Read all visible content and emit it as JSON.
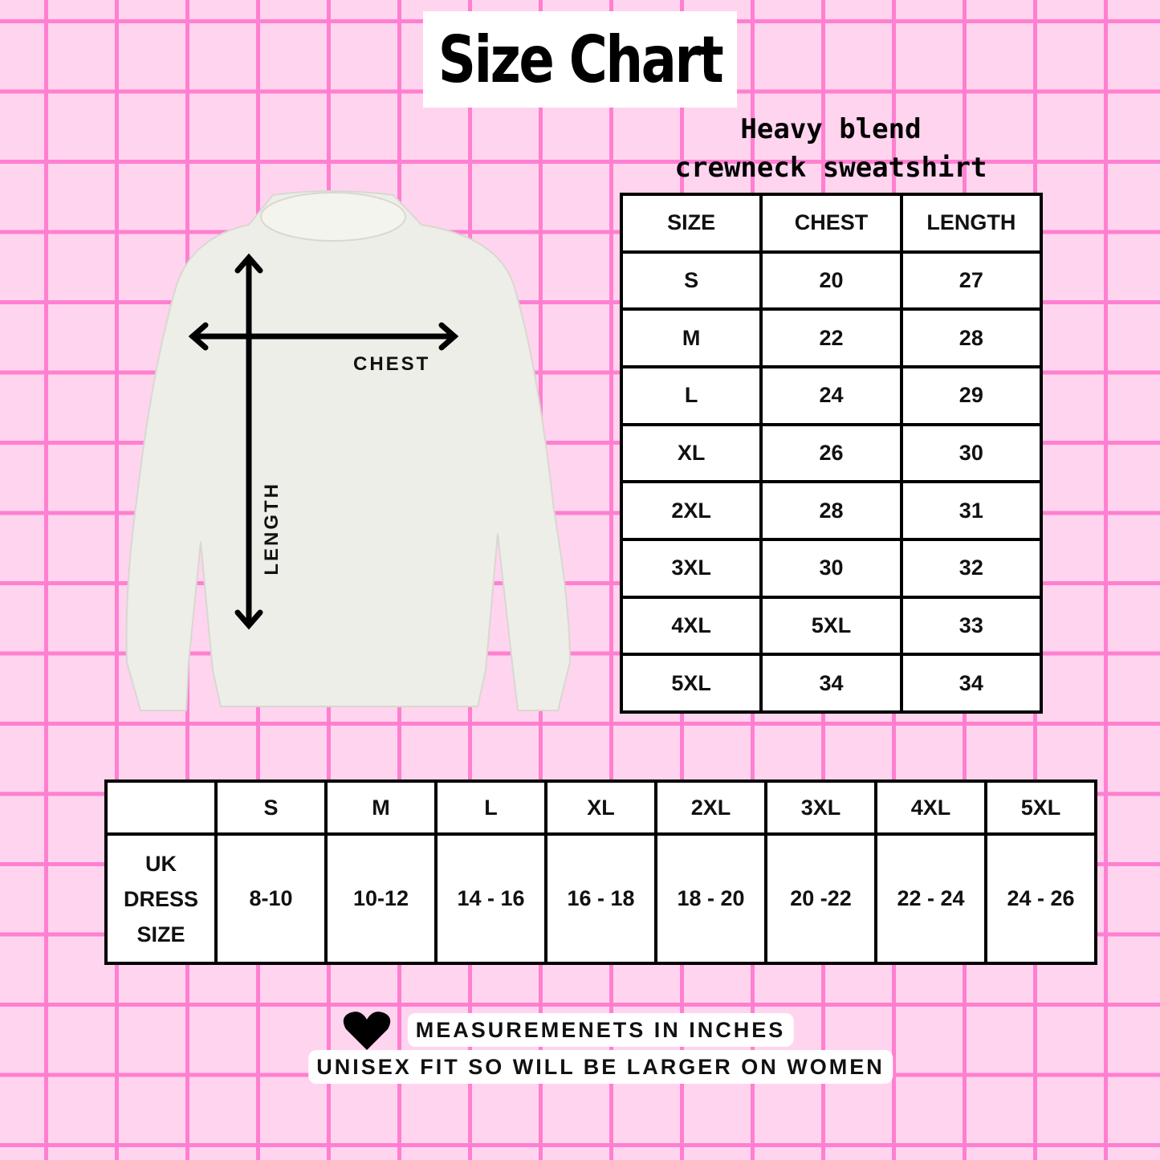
{
  "title": "Size Chart",
  "subtitle": [
    "Heavy blend",
    "crewneck sweatshirt"
  ],
  "garment_labels": {
    "chest": "CHEST",
    "length": "LENGTH"
  },
  "measurements_table": {
    "headers": [
      "SIZE",
      "CHEST",
      "LENGTH"
    ],
    "rows": [
      [
        "S",
        "20",
        "27"
      ],
      [
        "M",
        "22",
        "28"
      ],
      [
        "L",
        "24",
        "29"
      ],
      [
        "XL",
        "26",
        "30"
      ],
      [
        "2XL",
        "28",
        "31"
      ],
      [
        "3XL",
        "30",
        "32"
      ],
      [
        "4XL",
        "5XL",
        "33"
      ],
      [
        "5XL",
        "34",
        "34"
      ]
    ]
  },
  "uk_table": {
    "headers": [
      "",
      "S",
      "M",
      "L",
      "XL",
      "2XL",
      "3XL",
      "4XL",
      "5XL"
    ],
    "row_label": [
      "UK",
      "DRESS",
      "SIZE"
    ],
    "values": [
      "8-10",
      "10-12",
      "14 - 16",
      "16 - 18",
      "18 - 20",
      "20 -22",
      "22 - 24",
      "24 - 26"
    ]
  },
  "notes": [
    "MEASUREMENETS IN INCHES",
    "UNISEX FIT SO WILL BE LARGER ON WOMEN"
  ],
  "icons": {
    "note": "heart-icon"
  },
  "colors": {
    "background": "#ffd4ee",
    "grid": "#ff7fd0",
    "garment": "#eeeee8"
  }
}
